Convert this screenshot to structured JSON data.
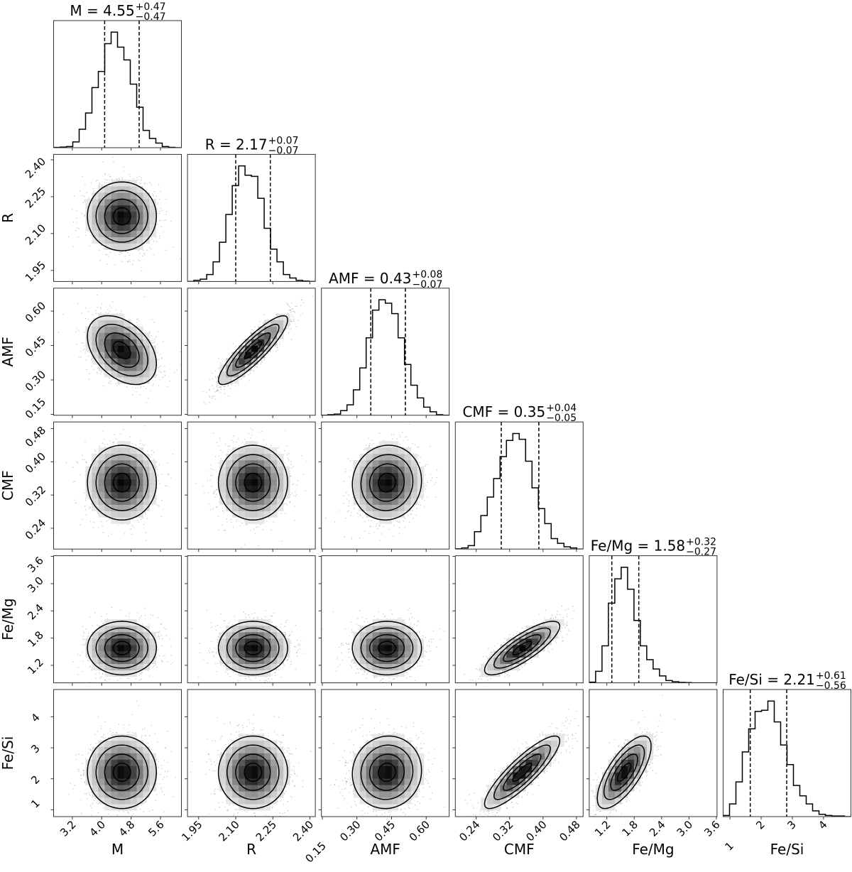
{
  "chart_data": {
    "type": "corner",
    "description_of_levels": "contours at 0.5, 1, 1.5, 2 sigma",
    "contour_sigma_levels": [
      0.5,
      1,
      1.5,
      2
    ],
    "bins": 20,
    "parameters": [
      {
        "label": "M",
        "title": {
          "text": "M = 4.55",
          "plus": "+0.47",
          "minus": "−0.47"
        },
        "median": 4.55,
        "plus": 0.47,
        "minus": 0.47,
        "range": [
          2.69,
          6.17
        ],
        "ticks": [
          "3.2",
          "4.0",
          "4.8",
          "5.6"
        ],
        "quantiles": [
          4.08,
          5.02
        ],
        "hist": [
          0.002,
          0.005,
          0.01,
          0.05,
          0.16,
          0.3,
          0.52,
          0.66,
          0.9,
          1.0,
          0.87,
          0.76,
          0.55,
          0.35,
          0.15,
          0.08,
          0.04,
          0.01,
          0.003,
          0
        ]
      },
      {
        "label": "R",
        "title": {
          "text": "R = 2.17",
          "plus": "+0.07",
          "minus": "−0.07"
        },
        "median": 2.17,
        "plus": 0.07,
        "minus": 0.07,
        "range": [
          1.905,
          2.422
        ],
        "ticks": [
          "1.95",
          "2.10",
          "2.25",
          "2.40"
        ],
        "quantiles": [
          2.1,
          2.24
        ],
        "hist": [
          0,
          0.01,
          0.02,
          0.06,
          0.17,
          0.34,
          0.58,
          0.83,
          1.0,
          0.92,
          0.91,
          0.72,
          0.46,
          0.28,
          0.17,
          0.06,
          0.03,
          0.01,
          0.003,
          0
        ]
      },
      {
        "label": "AMF",
        "title": {
          "text": "AMF = 0.43",
          "plus": "+0.08",
          "minus": "−0.07"
        },
        "median": 0.43,
        "plus": 0.08,
        "minus": 0.07,
        "range": [
          0.146,
          0.7
        ],
        "ticks": [
          "0.15",
          "0.30",
          "0.45",
          "0.60"
        ],
        "quantiles": [
          0.36,
          0.51
        ],
        "hist": [
          0,
          0.005,
          0.01,
          0.04,
          0.09,
          0.22,
          0.41,
          0.67,
          0.91,
          1.0,
          0.97,
          0.88,
          0.67,
          0.44,
          0.26,
          0.15,
          0.07,
          0.03,
          0.005,
          0
        ]
      },
      {
        "label": "CMF",
        "title": {
          "text": "CMF = 0.35",
          "plus": "+0.04",
          "minus": "−0.05"
        },
        "median": 0.35,
        "plus": 0.04,
        "minus": 0.05,
        "range": [
          0.19,
          0.496
        ],
        "ticks": [
          "0.24",
          "0.32",
          "0.40",
          "0.48"
        ],
        "quantiles": [
          0.3,
          0.39
        ],
        "hist": [
          0.002,
          0.01,
          0.03,
          0.15,
          0.29,
          0.45,
          0.61,
          0.8,
          0.94,
          1.0,
          0.95,
          0.76,
          0.53,
          0.35,
          0.22,
          0.09,
          0.05,
          0.02,
          0.01,
          0
        ]
      },
      {
        "label": "Fe/Mg",
        "title": {
          "text": "Fe/Mg = 1.58",
          "plus": "+0.32",
          "minus": "−0.27"
        },
        "median": 1.58,
        "plus": 0.32,
        "minus": 0.27,
        "range": [
          0.814,
          3.615
        ],
        "ticks": [
          "1.2",
          "1.8",
          "2.4",
          "3.0",
          "3.6"
        ],
        "quantiles": [
          1.31,
          1.9
        ],
        "hist": [
          0.006,
          0.1,
          0.32,
          0.69,
          0.9,
          1.0,
          0.81,
          0.54,
          0.32,
          0.2,
          0.12,
          0.06,
          0.02,
          0.01,
          0.004,
          0.002,
          0,
          0,
          0,
          0
        ]
      },
      {
        "label": "Fe/Si",
        "title": {
          "text": "Fe/Si = 2.21",
          "plus": "+0.61",
          "minus": "−0.56"
        },
        "median": 2.21,
        "plus": 0.61,
        "minus": 0.56,
        "range": [
          0.78,
          4.88
        ],
        "ticks": [
          "1",
          "2",
          "3",
          "4"
        ],
        "quantiles": [
          1.65,
          2.82
        ],
        "hist": [
          0.01,
          0.11,
          0.3,
          0.56,
          0.76,
          0.91,
          0.92,
          1.0,
          0.82,
          0.62,
          0.45,
          0.27,
          0.18,
          0.11,
          0.05,
          0.02,
          0.01,
          0.005,
          0.005,
          0
        ]
      }
    ],
    "correlations": [
      [
        1
      ],
      [
        0.0,
        1
      ],
      [
        -0.4,
        0.88,
        1
      ],
      [
        0.0,
        0.0,
        0.05,
        1
      ],
      [
        0.0,
        0.0,
        0.0,
        0.82,
        1
      ],
      [
        0.0,
        0.0,
        0.05,
        0.87,
        0.72,
        1
      ]
    ],
    "colors": {
      "line": "#000000",
      "points": "#555555",
      "frame": "#333333"
    }
  }
}
